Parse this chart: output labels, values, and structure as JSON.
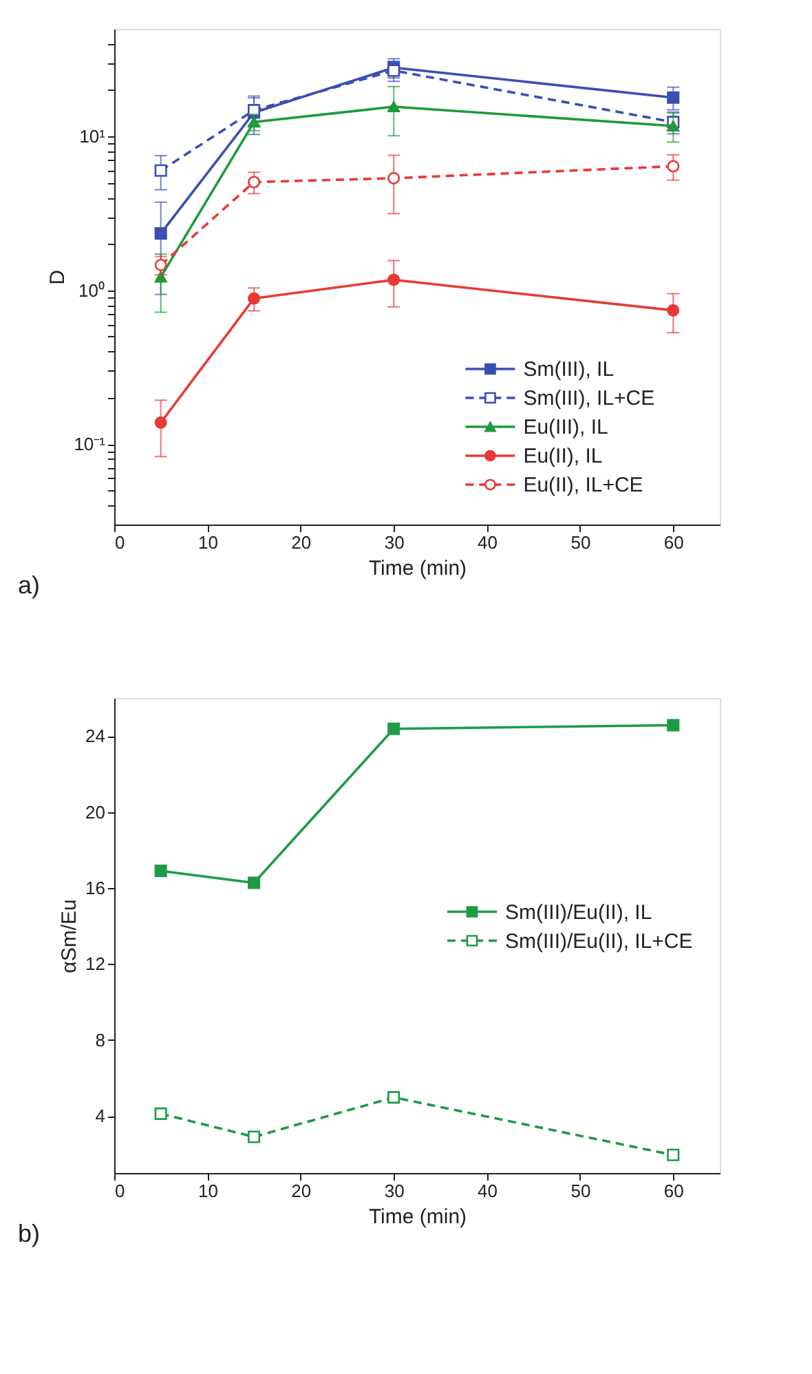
{
  "chart_data": [
    {
      "type": "line",
      "xlabel": "Time (min)",
      "ylabel": "D",
      "log": "y",
      "xlim": [
        0,
        65
      ],
      "xticks": [
        0,
        10,
        20,
        30,
        40,
        50,
        60
      ],
      "ylim": [
        0.03,
        50
      ],
      "yticks": [
        {
          "value": 0.04,
          "label": null
        },
        {
          "value": 0.05,
          "label": null
        },
        {
          "value": 0.06,
          "label": null
        },
        {
          "value": 0.07,
          "label": null
        },
        {
          "value": 0.08,
          "label": null
        },
        {
          "value": 0.09,
          "label": null
        },
        {
          "value": 0.1,
          "label": "10⁻¹"
        },
        {
          "value": 0.2,
          "label": null
        },
        {
          "value": 0.3,
          "label": null
        },
        {
          "value": 0.4,
          "label": null
        },
        {
          "value": 0.5,
          "label": null
        },
        {
          "value": 0.6,
          "label": null
        },
        {
          "value": 0.7,
          "label": null
        },
        {
          "value": 0.8,
          "label": null
        },
        {
          "value": 0.9,
          "label": null
        },
        {
          "value": 1,
          "label": "10⁰"
        },
        {
          "value": 2,
          "label": null
        },
        {
          "value": 3,
          "label": null
        },
        {
          "value": 4,
          "label": null
        },
        {
          "value": 5,
          "label": null
        },
        {
          "value": 6,
          "label": null
        },
        {
          "value": 7,
          "label": null
        },
        {
          "value": 8,
          "label": null
        },
        {
          "value": 9,
          "label": null
        },
        {
          "value": 10,
          "label": "10¹"
        },
        {
          "value": 20,
          "label": null
        },
        {
          "value": 30,
          "label": null
        },
        {
          "value": 40,
          "label": null
        }
      ],
      "x": [
        5,
        15,
        30,
        60
      ],
      "legend": "bottom right",
      "grid": false,
      "annotations": [
        "a)"
      ],
      "series": [
        {
          "name": "Sm(III), IL",
          "color": "#3b4fb3",
          "marker": "square",
          "line_style": "solid",
          "values": [
            2.34,
            14.3,
            28,
            17.9
          ],
          "errors": [
            1.4,
            4,
            4,
            3
          ]
        },
        {
          "name": "Sm(III), IL+CE",
          "color": "#3b4fb3",
          "marker": "square",
          "line_style": "dashed",
          "values": [
            6.0,
            14.8,
            26.8,
            12.4
          ],
          "errors": [
            1.5,
            3,
            4,
            2
          ]
        },
        {
          "name": "Eu(III), IL",
          "color": "#1f9a3c",
          "marker": "triangle",
          "line_style": "solid",
          "values": [
            1.22,
            12.4,
            15.6,
            11.7
          ],
          "errors": [
            0.5,
            1.5,
            5.5,
            2.5
          ]
        },
        {
          "name": "Eu(II), IL",
          "color": "#e83a34",
          "marker": "circle",
          "line_style": "solid",
          "values": [
            0.138,
            0.885,
            1.17,
            0.74
          ],
          "errors": [
            0.055,
            0.15,
            0.39,
            0.21
          ]
        },
        {
          "name": "Eu(II), IL+CE",
          "color": "#e83a34",
          "marker": "circle",
          "line_style": "dashed",
          "values": [
            1.46,
            5.05,
            5.35,
            6.4
          ],
          "errors": [
            0.2,
            0.8,
            2.2,
            1.2
          ]
        }
      ]
    },
    {
      "type": "line",
      "xlabel": "Time (min)",
      "ylabel": "αSm/Eu",
      "xlim": [
        0,
        65
      ],
      "xticks": [
        0,
        10,
        20,
        30,
        40,
        50,
        60
      ],
      "ylim": [
        1,
        26
      ],
      "yticks": [
        4,
        8,
        12,
        16,
        20,
        24
      ],
      "x": [
        5,
        15,
        30,
        60
      ],
      "legend": "right",
      "grid": false,
      "annotations": [
        "b)"
      ],
      "series": [
        {
          "name": "Sm(III)/Eu(II), IL",
          "color": "#1f9a48",
          "marker": "square",
          "line_style": "solid",
          "values": [
            16.9,
            16.27,
            24.38,
            24.57
          ]
        },
        {
          "name": "Sm(III)/Eu(II), IL+CE",
          "color": "#1f9a48",
          "marker": "square",
          "line_style": "dashed",
          "values": [
            4.12,
            2.9,
            4.98,
            1.95
          ]
        }
      ]
    }
  ]
}
